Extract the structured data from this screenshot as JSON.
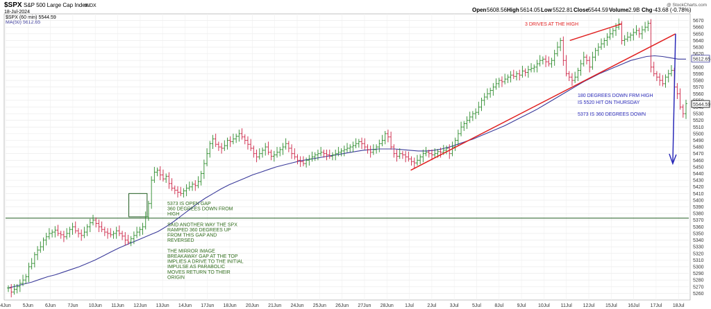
{
  "header": {
    "symbol": "$SPX",
    "name": "S&P 500 Large Cap Index",
    "exchange": "INDX",
    "date": "18-Jul-2024",
    "watermark": "@ StockCharts.com",
    "open_label": "Open",
    "open": "5608.56",
    "high_label": "High",
    "high": "5614.05",
    "low_label": "Low",
    "low": "5522.81",
    "close_label": "Close",
    "close": "5544.59",
    "volume_label": "Volume",
    "volume": "2.9B",
    "chg_label": "Chg",
    "chg": "-43.68 (-0.78%)",
    "legend_price": "$SPX (60 min) 5544.59",
    "legend_ma": "MA(50) 5612.65"
  },
  "colors": {
    "up": "#2a8a2a",
    "down": "#cc2244",
    "ma": "#3a3a9a",
    "trendline": "#e02020",
    "support": "#1e5a1e",
    "arrow": "#2a2ab8",
    "box": "#1e5a1e"
  },
  "chart_data": {
    "type": "line",
    "title": "$SPX S&P 500 Large Cap Index INDX",
    "ylim": [
      5250,
      5680
    ],
    "y_ticks": [
      5260,
      5270,
      5280,
      5290,
      5300,
      5310,
      5320,
      5330,
      5340,
      5350,
      5360,
      5370,
      5380,
      5390,
      5400,
      5410,
      5420,
      5430,
      5440,
      5450,
      5460,
      5470,
      5480,
      5490,
      5500,
      5510,
      5520,
      5530,
      5540,
      5550,
      5560,
      5570,
      5580,
      5590,
      5600,
      5610,
      5620,
      5630,
      5640,
      5650,
      5660,
      5670
    ],
    "x_ticks": [
      "4Jun",
      "5Jun",
      "6Jun",
      "7Jun",
      "10Jun",
      "11Jun",
      "12Jun",
      "13Jun",
      "14Jun",
      "17Jun",
      "18Jun",
      "20Jun",
      "21Jun",
      "24Jun",
      "25Jun",
      "26Jun",
      "27Jun",
      "28Jun",
      "1Jul",
      "2Jul",
      "3Jul",
      "5Jul",
      "8Jul",
      "9Jul",
      "10Jul",
      "11Jul",
      "12Jul",
      "15Jul",
      "16Jul",
      "17Jul",
      "18Jul"
    ],
    "series": [
      {
        "name": "$SPX (60 min)",
        "style": "ohlc",
        "close": [
          5268,
          5262,
          5266,
          5270,
          5275,
          5280,
          5285,
          5300,
          5305,
          5318,
          5325,
          5330,
          5340,
          5345,
          5350,
          5352,
          5355,
          5350,
          5348,
          5345,
          5350,
          5356,
          5360,
          5354,
          5350,
          5347,
          5352,
          5360,
          5366,
          5370,
          5365,
          5360,
          5356,
          5352,
          5350,
          5348,
          5350,
          5354,
          5350,
          5346,
          5340,
          5337,
          5342,
          5347,
          5352,
          5356,
          5360,
          5375,
          5395,
          5430,
          5442,
          5445,
          5438,
          5432,
          5436,
          5425,
          5418,
          5415,
          5412,
          5410,
          5414,
          5418,
          5420,
          5424,
          5422,
          5428,
          5440,
          5455,
          5470,
          5485,
          5492,
          5484,
          5480,
          5478,
          5482,
          5490,
          5488,
          5492,
          5496,
          5500,
          5495,
          5490,
          5484,
          5478,
          5470,
          5465,
          5470,
          5475,
          5480,
          5472,
          5466,
          5468,
          5472,
          5476,
          5480,
          5485,
          5478,
          5470,
          5465,
          5460,
          5458,
          5455,
          5460,
          5462,
          5465,
          5468,
          5470,
          5472,
          5470,
          5468,
          5466,
          5468,
          5470,
          5472,
          5474,
          5476,
          5478,
          5480,
          5482,
          5485,
          5488,
          5485,
          5480,
          5476,
          5472,
          5476,
          5480,
          5485,
          5490,
          5500,
          5495,
          5480,
          5470,
          5466,
          5470,
          5468,
          5465,
          5462,
          5458,
          5456,
          5460,
          5465,
          5470,
          5472,
          5470,
          5468,
          5470,
          5473,
          5472,
          5475,
          5478,
          5470,
          5480,
          5490,
          5500,
          5510,
          5515,
          5520,
          5525,
          5530,
          5532,
          5540,
          5550,
          5555,
          5560,
          5565,
          5570,
          5575,
          5580,
          5578,
          5582,
          5585,
          5588,
          5586,
          5590,
          5588,
          5594,
          5592,
          5596,
          5598,
          5600,
          5605,
          5610,
          5612,
          5608,
          5605,
          5610,
          5620,
          5630,
          5640,
          5610,
          5590,
          5585,
          5580,
          5585,
          5595,
          5605,
          5615,
          5610,
          5600,
          5615,
          5625,
          5630,
          5635,
          5640,
          5645,
          5650,
          5655,
          5660,
          5665,
          5640,
          5642,
          5645,
          5648,
          5652,
          5655,
          5650,
          5656,
          5660,
          5666,
          5600,
          5590,
          5585,
          5580,
          5575,
          5585,
          5590,
          5595,
          5570,
          5560,
          5540,
          5530,
          5545
        ]
      },
      {
        "name": "MA(50)",
        "style": "line",
        "values": [
          5268,
          5271,
          5274,
          5277,
          5281,
          5285,
          5288,
          5292,
          5296,
          5300,
          5305,
          5310,
          5316,
          5322,
          5328,
          5333,
          5338,
          5343,
          5348,
          5353,
          5360,
          5368,
          5377,
          5386,
          5395,
          5403,
          5410,
          5417,
          5423,
          5428,
          5433,
          5438,
          5442,
          5446,
          5450,
          5453,
          5456,
          5459,
          5461,
          5463,
          5465,
          5467,
          5469,
          5471,
          5473,
          5475,
          5476,
          5477,
          5477,
          5477,
          5476,
          5475,
          5474,
          5474,
          5475,
          5477,
          5480,
          5484,
          5488,
          5492,
          5497,
          5502,
          5507,
          5512,
          5518,
          5524,
          5530,
          5536,
          5543,
          5550,
          5557,
          5564,
          5571,
          5578,
          5584,
          5590,
          5595,
          5600,
          5605,
          5610,
          5613,
          5616,
          5617,
          5616,
          5614,
          5612,
          5612
        ]
      }
    ],
    "price_label": "5544.59",
    "ma_label": "5612.65",
    "support_level": 5373,
    "gap_box": {
      "low": 5375,
      "high": 5410,
      "from": "11Jun",
      "to": "12Jun"
    },
    "trend_low_start": {
      "date": "1Jul",
      "value": 5445
    },
    "trend_low_end": {
      "date": "17Jul",
      "value": 5650
    },
    "trend_high_start": {
      "date": "11Jul",
      "value": 5640
    },
    "trend_high_end": {
      "date": "15Jul",
      "value": 5665
    },
    "arrow_start": {
      "date": "17Jul",
      "value": 5650
    },
    "arrow_end": {
      "date": "17Jul",
      "value": 5455
    },
    "annotations": {
      "three_drives": "3 DRIVES AT THE HIGH",
      "blue_1": "180 DEGREES DOWN FRM HIGH",
      "blue_2": "IS 5520 HIT ON THURSDAY",
      "blue_3": "5373 IS 360 DEGREES DOWN",
      "green_lines": [
        "5373 IS OPEN GAP",
        "360 DEGREES DOWN FROM",
        "HIGH",
        "",
        "SAID ANOTHER WAY THE SPX",
        "RAMPED 360 DEGREES UP",
        "FROM THIS GAP AND",
        "REVERSED",
        "",
        "THE MIRROR IMAGE",
        "BREAKAWAY GAP AT THE TOP",
        "IMPLIES A DRIVE TO THE INITIAL",
        "IMPULSE AS PARABOLIC",
        "MOVES RETURN TO THEIR",
        "ORIGIN"
      ]
    }
  }
}
